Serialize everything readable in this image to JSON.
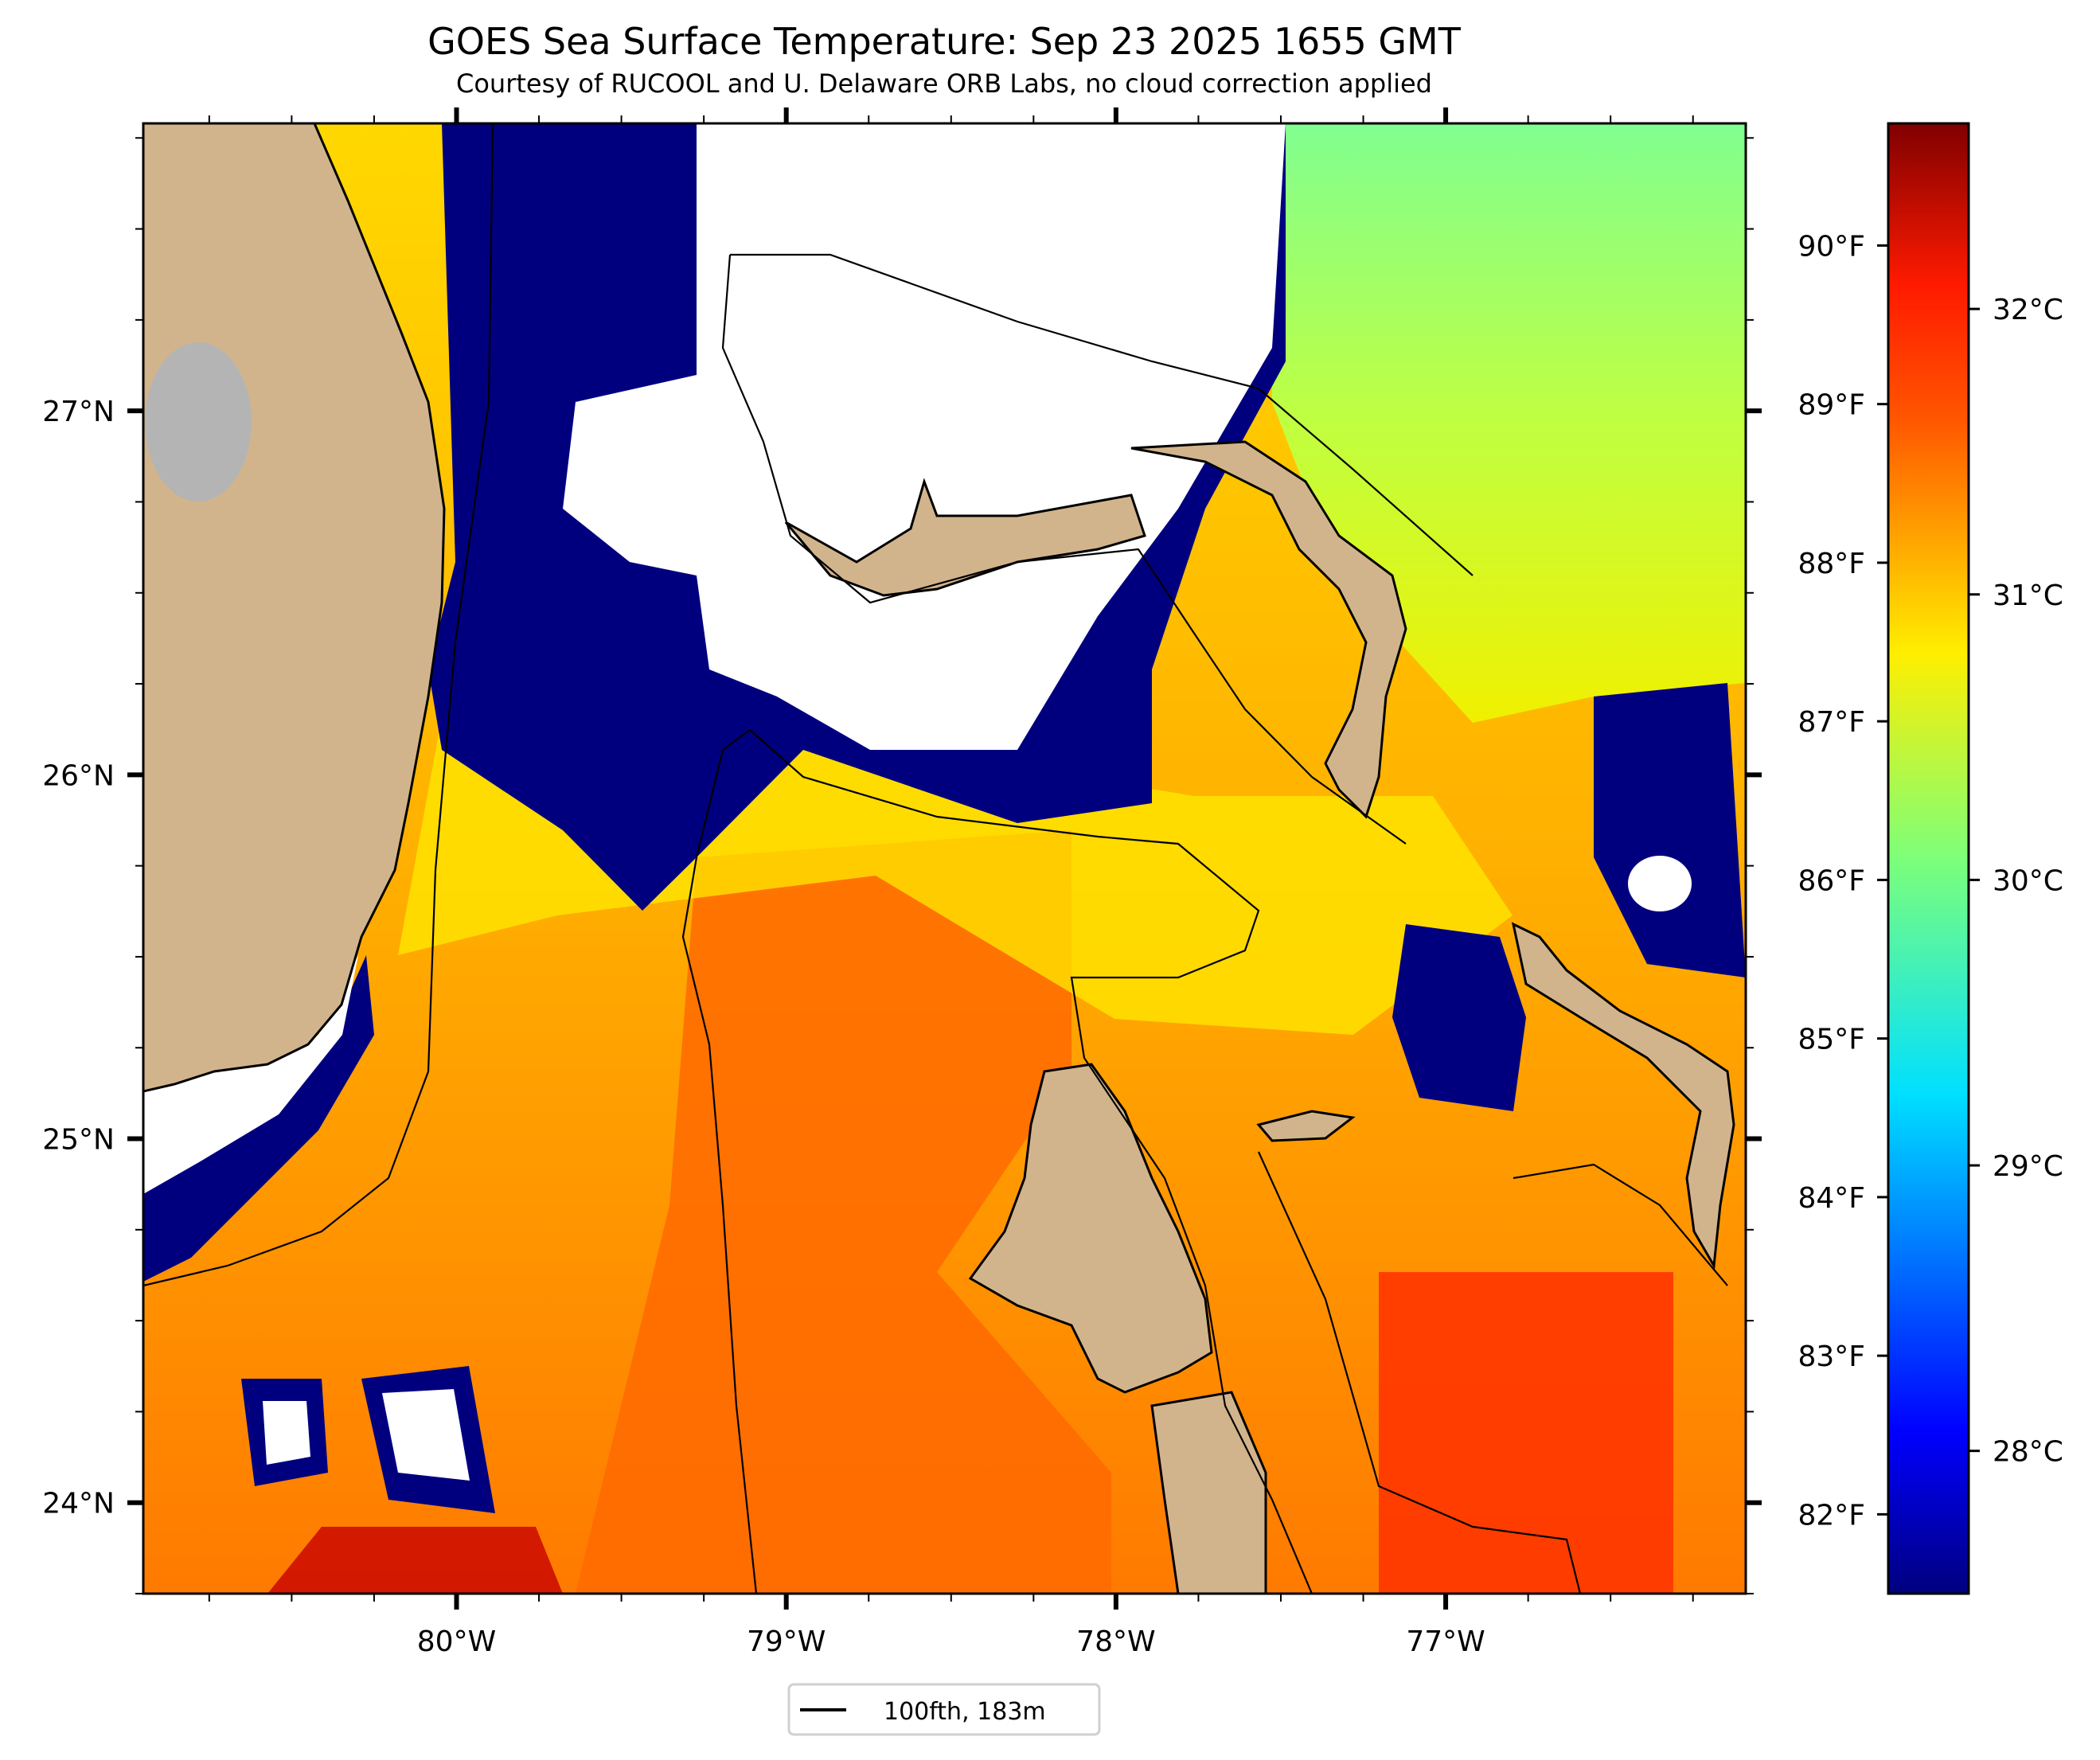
{
  "title": "GOES Sea Surface Temperature: Sep 23 2025 1655 GMT",
  "subtitle": "Courtesy of RUCOOL and U. Delaware ORB Labs, no cloud correction applied",
  "map": {
    "lon_ticks": [
      {
        "value": -80,
        "label": "80°W"
      },
      {
        "value": -79,
        "label": "79°W"
      },
      {
        "value": -78,
        "label": "78°W"
      },
      {
        "value": -77,
        "label": "77°W"
      }
    ],
    "lat_ticks": [
      {
        "value": 27,
        "label": "27°N"
      },
      {
        "value": 26,
        "label": "26°N"
      },
      {
        "value": 25,
        "label": "25°N"
      },
      {
        "value": 24,
        "label": "24°N"
      }
    ],
    "extent": {
      "lon_min": -80.95,
      "lon_max": -76.09,
      "lat_min": 23.75,
      "lat_max": 27.79
    },
    "colors": {
      "land": "#d2b48c",
      "lake": "#b4b4b4",
      "cloud": "#00007f",
      "nodata": "#ffffff"
    }
  },
  "colorbar": {
    "range_c": [
      27.5,
      32.65
    ],
    "celsius_ticks": [
      {
        "value": 32,
        "label": "32°C"
      },
      {
        "value": 31,
        "label": "31°C"
      },
      {
        "value": 30,
        "label": "30°C"
      },
      {
        "value": 29,
        "label": "29°C"
      },
      {
        "value": 28,
        "label": "28°C"
      }
    ],
    "fahrenheit_ticks": [
      {
        "value": 90,
        "label": "90°F"
      },
      {
        "value": 89,
        "label": "89°F"
      },
      {
        "value": 88,
        "label": "88°F"
      },
      {
        "value": 87,
        "label": "87°F"
      },
      {
        "value": 86,
        "label": "86°F"
      },
      {
        "value": 85,
        "label": "85°F"
      },
      {
        "value": 84,
        "label": "84°F"
      },
      {
        "value": 83,
        "label": "83°F"
      },
      {
        "value": 82,
        "label": "82°F"
      }
    ],
    "colormap": "jet"
  },
  "legend": {
    "label": "100fth, 183m"
  }
}
